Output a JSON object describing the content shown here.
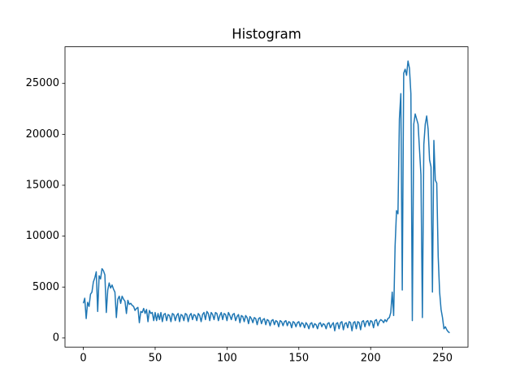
{
  "chart_data": {
    "type": "line",
    "title": "Histogram",
    "color": "#1f77b4",
    "x": [
      0,
      1,
      2,
      3,
      4,
      5,
      6,
      7,
      8,
      9,
      10,
      11,
      12,
      13,
      14,
      15,
      16,
      17,
      18,
      19,
      20,
      21,
      22,
      23,
      24,
      25,
      26,
      27,
      28,
      29,
      30,
      31,
      32,
      33,
      34,
      35,
      36,
      37,
      38,
      39,
      40,
      41,
      42,
      43,
      44,
      45,
      46,
      47,
      48,
      49,
      50,
      51,
      52,
      53,
      54,
      55,
      56,
      57,
      58,
      59,
      60,
      61,
      62,
      63,
      64,
      65,
      66,
      67,
      68,
      69,
      70,
      71,
      72,
      73,
      74,
      75,
      76,
      77,
      78,
      79,
      80,
      81,
      82,
      83,
      84,
      85,
      86,
      87,
      88,
      89,
      90,
      91,
      92,
      93,
      94,
      95,
      96,
      97,
      98,
      99,
      100,
      101,
      102,
      103,
      104,
      105,
      106,
      107,
      108,
      109,
      110,
      111,
      112,
      113,
      114,
      115,
      116,
      117,
      118,
      119,
      120,
      121,
      122,
      123,
      124,
      125,
      126,
      127,
      128,
      129,
      130,
      131,
      132,
      133,
      134,
      135,
      136,
      137,
      138,
      139,
      140,
      141,
      142,
      143,
      144,
      145,
      146,
      147,
      148,
      149,
      150,
      151,
      152,
      153,
      154,
      155,
      156,
      157,
      158,
      159,
      160,
      161,
      162,
      163,
      164,
      165,
      166,
      167,
      168,
      169,
      170,
      171,
      172,
      173,
      174,
      175,
      176,
      177,
      178,
      179,
      180,
      181,
      182,
      183,
      184,
      185,
      186,
      187,
      188,
      189,
      190,
      191,
      192,
      193,
      194,
      195,
      196,
      197,
      198,
      199,
      200,
      201,
      202,
      203,
      204,
      205,
      206,
      207,
      208,
      209,
      210,
      211,
      212,
      213,
      214,
      215,
      216,
      217,
      218,
      219,
      220,
      221,
      222,
      223,
      224,
      225,
      226,
      227,
      228,
      229,
      230,
      231,
      232,
      233,
      234,
      235,
      236,
      237,
      238,
      239,
      240,
      241,
      242,
      243,
      244,
      245,
      246,
      247,
      248,
      249,
      250,
      251,
      252,
      253,
      254,
      255
    ],
    "values": [
      3400,
      3900,
      1900,
      3500,
      3100,
      4300,
      4500,
      5500,
      5900,
      6500,
      2600,
      6100,
      5800,
      6800,
      6600,
      6200,
      2500,
      4700,
      5400,
      4900,
      5200,
      4800,
      4500,
      2000,
      3800,
      4100,
      3400,
      4100,
      3800,
      3600,
      2400,
      3700,
      3300,
      3400,
      3200,
      3100,
      2700,
      2900,
      3000,
      1500,
      2600,
      2500,
      2900,
      2400,
      2800,
      1600,
      2700,
      2400,
      2500,
      1700,
      2500,
      1700,
      2400,
      1800,
      2500,
      1600,
      2300,
      2400,
      1700,
      2300,
      2200,
      1600,
      2400,
      2300,
      1700,
      2200,
      2400,
      1600,
      2300,
      2200,
      1700,
      2400,
      2300,
      1600,
      2200,
      2400,
      1800,
      2300,
      2200,
      1700,
      2400,
      2200,
      1600,
      2300,
      2500,
      1800,
      2600,
      2400,
      1700,
      2500,
      2300,
      1800,
      2500,
      2400,
      1700,
      2200,
      2500,
      1800,
      2400,
      2300,
      1700,
      2500,
      2200,
      1800,
      2300,
      2400,
      1700,
      2100,
      2300,
      1500,
      2200,
      2100,
      1600,
      2200,
      2000,
      1400,
      2100,
      1900,
      1500,
      2000,
      1900,
      1300,
      1900,
      2000,
      1400,
      1800,
      1900,
      1300,
      1800,
      1700,
      1200,
      1700,
      1800,
      1300,
      1700,
      1600,
      1100,
      1700,
      1600,
      1200,
      1600,
      1700,
      1200,
      1600,
      1500,
      1000,
      1600,
      1500,
      1100,
      1500,
      1600,
      1100,
      1500,
      1400,
      1000,
      1500,
      1300,
      900,
      1400,
      1500,
      1000,
      1400,
      1300,
      900,
      1400,
      1500,
      1100,
      1400,
      1300,
      900,
      1400,
      1500,
      1000,
      1300,
      1500,
      700,
      1400,
      1500,
      900,
      1500,
      1600,
      800,
      1400,
      1500,
      1000,
      1600,
      1500,
      700,
      1500,
      1600,
      900,
      1600,
      1500,
      800,
      1600,
      1700,
      1100,
      1600,
      1700,
      1200,
      1700,
      1600,
      1000,
      1700,
      1800,
      1200,
      1600,
      1800,
      1700,
      1500,
      1800,
      1600,
      1900,
      2000,
      2500,
      4500,
      2200,
      9000,
      12500,
      12200,
      21500,
      24000,
      4700,
      26000,
      26400,
      25800,
      27200,
      26500,
      24000,
      1700,
      21000,
      22000,
      21500,
      21000,
      18500,
      16000,
      2000,
      19000,
      21000,
      21800,
      20500,
      17500,
      16800,
      4500,
      19400,
      15500,
      15200,
      8000,
      4500,
      2800,
      2000,
      900,
      1100,
      800,
      600,
      500
    ],
    "xlim": [
      -12.75,
      267.75
    ],
    "xticks": [
      0,
      50,
      100,
      150,
      200,
      250
    ],
    "ylim": [
      -900,
      28600
    ],
    "yticks": [
      0,
      5000,
      10000,
      15000,
      20000,
      25000
    ]
  }
}
